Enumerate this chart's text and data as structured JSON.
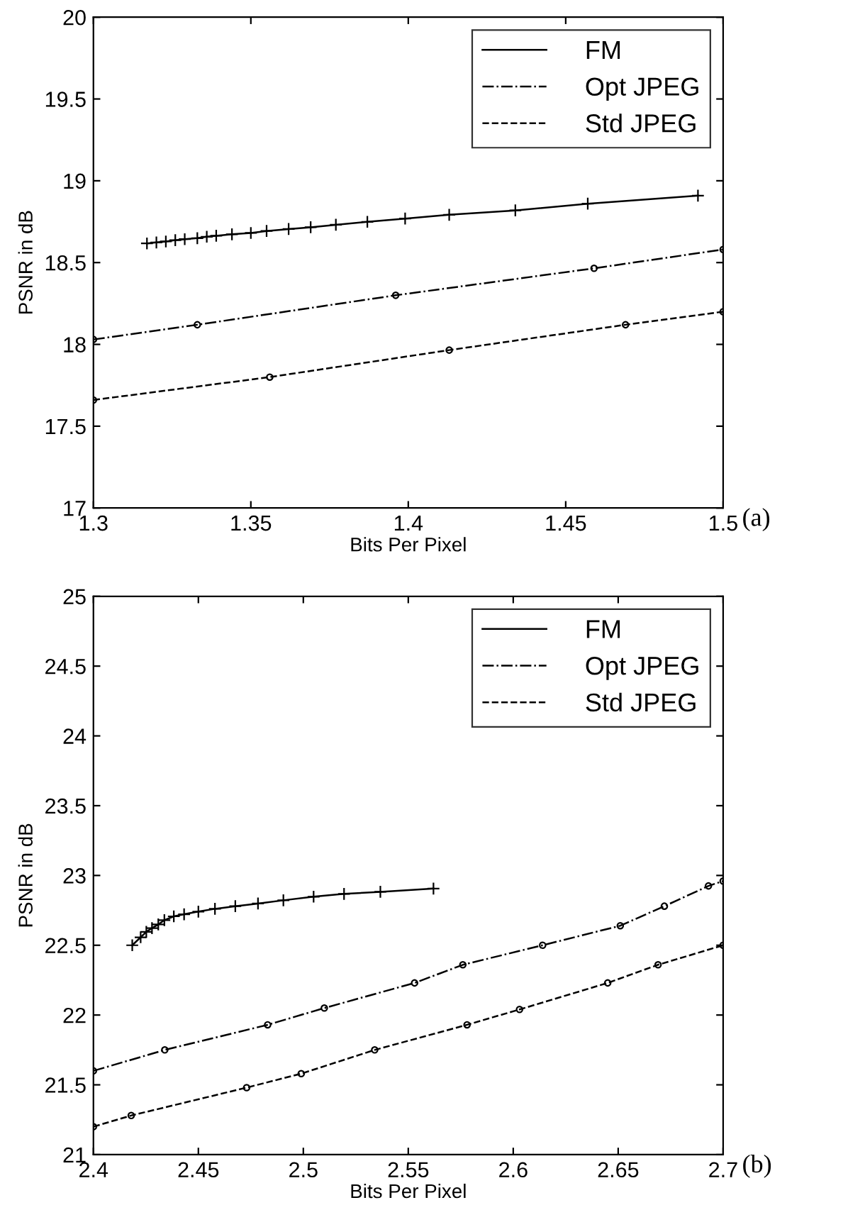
{
  "chart_data": [
    {
      "type": "line",
      "xlabel": "Bits Per Pixel",
      "ylabel": "PSNR in dB",
      "annotations": [
        "(a)"
      ],
      "legend": "top right",
      "grid": false,
      "xlim": [
        1.3,
        1.5
      ],
      "xticks": [
        1.3,
        1.35,
        1.4,
        1.45,
        1.5
      ],
      "ylim": [
        17,
        20
      ],
      "yticks": [
        17,
        17.5,
        18,
        18.5,
        19,
        19.5,
        20
      ],
      "series": [
        {
          "name": "FM",
          "color": "#000000",
          "line_style": "solid",
          "marker": "cross",
          "x": [
            1.317,
            1.32,
            1.323,
            1.326,
            1.329,
            1.333,
            1.336,
            1.339,
            1.344,
            1.35,
            1.355,
            1.362,
            1.369,
            1.377,
            1.387,
            1.399,
            1.413,
            1.434,
            1.457,
            1.492
          ],
          "values": [
            18.617,
            18.623,
            18.629,
            18.637,
            18.643,
            18.649,
            18.658,
            18.664,
            18.673,
            18.681,
            18.693,
            18.705,
            18.716,
            18.731,
            18.749,
            18.769,
            18.792,
            18.819,
            18.86,
            18.909
          ]
        },
        {
          "name": "Opt JPEG",
          "color": "#000000",
          "line_style": "dashdot",
          "marker": "circle",
          "x": [
            1.3,
            1.333,
            1.396,
            1.459,
            1.5
          ],
          "values": [
            18.03,
            18.12,
            18.3,
            18.465,
            18.58
          ]
        },
        {
          "name": "Std JPEG",
          "color": "#000000",
          "line_style": "dashed",
          "marker": "circle",
          "x": [
            1.3,
            1.356,
            1.413,
            1.469,
            1.5
          ],
          "values": [
            17.66,
            17.8,
            17.965,
            18.12,
            18.2
          ]
        }
      ]
    },
    {
      "type": "line",
      "xlabel": "Bits Per Pixel",
      "ylabel": "PSNR in dB",
      "annotations": [
        "(b)"
      ],
      "legend": "top right",
      "grid": false,
      "xlim": [
        2.4,
        2.7
      ],
      "xticks": [
        2.4,
        2.45,
        2.5,
        2.55,
        2.6,
        2.65,
        2.7
      ],
      "ylim": [
        21,
        25
      ],
      "yticks": [
        21,
        21.5,
        22,
        22.5,
        23,
        23.5,
        24,
        24.5,
        25
      ],
      "series": [
        {
          "name": "FM",
          "color": "#000000",
          "line_style": "solid",
          "marker": "cross",
          "x": [
            2.4185,
            2.4225,
            2.4252,
            2.4279,
            2.4309,
            2.4338,
            2.4383,
            2.4432,
            2.45,
            2.4579,
            2.4676,
            2.4784,
            2.4905,
            2.5049,
            2.5194,
            2.5367,
            2.562
          ],
          "values": [
            22.5,
            22.557,
            22.596,
            22.623,
            22.649,
            22.68,
            22.707,
            22.722,
            22.741,
            22.761,
            22.78,
            22.799,
            22.822,
            22.848,
            22.868,
            22.883,
            22.906
          ]
        },
        {
          "name": "Opt JPEG",
          "color": "#000000",
          "line_style": "dashdot",
          "marker": "circle",
          "x": [
            2.4,
            2.434,
            2.483,
            2.51,
            2.553,
            2.576,
            2.614,
            2.651,
            2.672,
            2.693,
            2.7
          ],
          "values": [
            21.6,
            21.75,
            21.93,
            22.05,
            22.23,
            22.36,
            22.5,
            22.64,
            22.78,
            22.925,
            22.96
          ]
        },
        {
          "name": "Std JPEG",
          "color": "#000000",
          "line_style": "dashed",
          "marker": "circle",
          "x": [
            2.4,
            2.418,
            2.473,
            2.499,
            2.534,
            2.578,
            2.603,
            2.645,
            2.669,
            2.7
          ],
          "values": [
            21.2,
            21.28,
            21.48,
            21.58,
            21.75,
            21.93,
            22.04,
            22.23,
            22.36,
            22.5
          ]
        }
      ]
    }
  ]
}
